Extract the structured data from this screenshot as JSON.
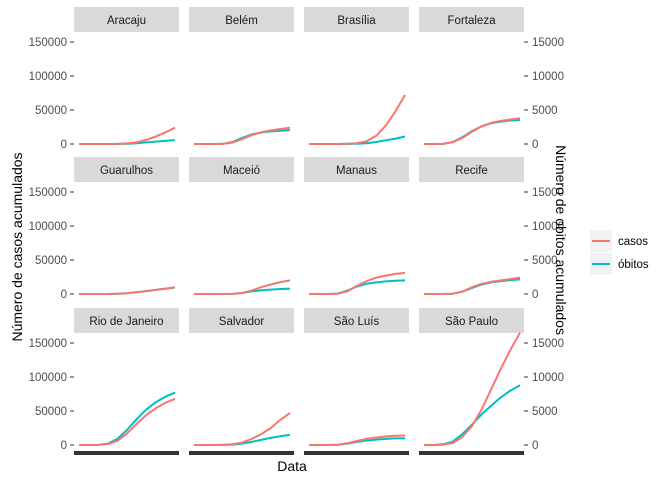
{
  "chart_data": {
    "type": "line",
    "title": "",
    "xlabel": "Data",
    "ylabel": "Número de casos acumulados",
    "ylabel_right": "Número de obitos acumulados",
    "ylim": [
      0,
      150000
    ],
    "ylim_right": [
      0,
      15000
    ],
    "yticks": [
      0,
      50000,
      100000,
      150000
    ],
    "yticks_right": [
      0,
      5000,
      10000,
      15000
    ],
    "x": [
      0,
      10,
      20,
      30,
      40,
      50,
      60,
      70,
      80,
      90,
      100
    ],
    "legend": {
      "position": "right",
      "entries": [
        "casos",
        "óbitos"
      ]
    },
    "colors": {
      "casos": "#F8766D",
      "obitos": "#00BFC4",
      "strip": "#D9D9D9",
      "panel": "#FFFFFF",
      "axis_text": "#4D4D4D"
    },
    "panels": [
      {
        "city": "Aracaju",
        "casos": [
          0,
          0,
          0,
          0,
          200,
          900,
          2500,
          6000,
          11000,
          17000,
          24000
        ],
        "obitos": [
          0,
          0,
          0,
          0,
          10,
          50,
          120,
          230,
          350,
          460,
          580
        ]
      },
      {
        "city": "Belém",
        "casos": [
          0,
          0,
          0,
          200,
          2000,
          7000,
          13000,
          17000,
          20000,
          22000,
          24000
        ],
        "obitos": [
          0,
          0,
          0,
          30,
          300,
          900,
          1400,
          1700,
          1850,
          1950,
          2050
        ]
      },
      {
        "city": "Brasília",
        "casos": [
          0,
          0,
          0,
          0,
          300,
          1200,
          4000,
          12000,
          27000,
          48000,
          72000
        ],
        "obitos": [
          0,
          0,
          0,
          0,
          10,
          40,
          120,
          300,
          550,
          800,
          1100
        ]
      },
      {
        "city": "Fortaleza",
        "casos": [
          0,
          0,
          300,
          2500,
          9000,
          18000,
          26000,
          31000,
          34000,
          36000,
          38000
        ],
        "obitos": [
          0,
          0,
          20,
          300,
          1000,
          1900,
          2600,
          3050,
          3300,
          3450,
          3550
        ]
      },
      {
        "city": "Guarulhos",
        "casos": [
          0,
          0,
          0,
          0,
          300,
          1000,
          2500,
          4000,
          6000,
          8000,
          10000
        ],
        "obitos": [
          0,
          0,
          0,
          0,
          30,
          100,
          250,
          420,
          600,
          780,
          950
        ]
      },
      {
        "city": "Maceió",
        "casos": [
          0,
          0,
          0,
          0,
          200,
          1500,
          5000,
          10000,
          14000,
          17500,
          20000
        ],
        "obitos": [
          0,
          0,
          0,
          0,
          20,
          150,
          380,
          550,
          650,
          730,
          800
        ]
      },
      {
        "city": "Manaus",
        "casos": [
          0,
          0,
          0,
          500,
          4000,
          12000,
          19000,
          24000,
          27000,
          29500,
          31000
        ],
        "obitos": [
          0,
          0,
          0,
          60,
          500,
          1100,
          1500,
          1700,
          1850,
          1950,
          2000
        ]
      },
      {
        "city": "Recife",
        "casos": [
          0,
          0,
          0,
          500,
          3500,
          10000,
          15000,
          18000,
          20000,
          22000,
          24000
        ],
        "obitos": [
          0,
          0,
          0,
          50,
          350,
          900,
          1400,
          1700,
          1900,
          2050,
          2150
        ]
      },
      {
        "city": "Rio de Janeiro",
        "casos": [
          0,
          0,
          200,
          1500,
          6000,
          17000,
          31000,
          44000,
          54000,
          62000,
          68000
        ],
        "obitos": [
          0,
          0,
          20,
          200,
          900,
          2200,
          3800,
          5200,
          6300,
          7100,
          7700
        ]
      },
      {
        "city": "Salvador",
        "casos": [
          0,
          0,
          0,
          200,
          1000,
          3500,
          9000,
          16000,
          25000,
          37000,
          47000
        ],
        "obitos": [
          0,
          0,
          0,
          10,
          60,
          200,
          450,
          750,
          1050,
          1300,
          1500
        ]
      },
      {
        "city": "São Luís",
        "casos": [
          0,
          0,
          0,
          500,
          2500,
          6000,
          9000,
          11000,
          12500,
          13500,
          14000
        ],
        "obitos": [
          0,
          0,
          0,
          30,
          200,
          450,
          650,
          800,
          900,
          970,
          1000
        ]
      },
      {
        "city": "São Paulo",
        "casos": [
          0,
          0,
          500,
          3000,
          12000,
          28000,
          52000,
          82000,
          112000,
          140000,
          165000
        ],
        "obitos": [
          0,
          0,
          100,
          500,
          1600,
          3000,
          4500,
          5800,
          7000,
          8000,
          8800
        ]
      }
    ]
  }
}
